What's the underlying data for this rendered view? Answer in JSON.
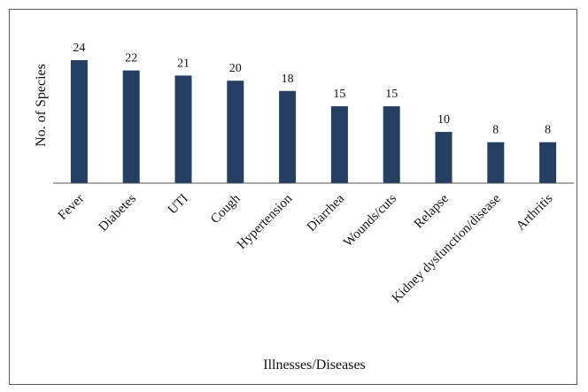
{
  "chart_data": {
    "type": "bar",
    "title": "",
    "xlabel": "Illnesses/Diseases",
    "ylabel": "No. of Species",
    "categories": [
      "Fever",
      "Diabetes",
      "UTI",
      "Cough",
      "Hypertension",
      "Diarrhea",
      "Wounds/cuts",
      "Relapse",
      "Kidney dysfunction/disease",
      "Arthritis"
    ],
    "values": [
      24,
      22,
      21,
      20,
      18,
      15,
      15,
      10,
      8,
      8
    ],
    "ylim": [
      0,
      24
    ],
    "grid": false,
    "legend": "none",
    "data_labels": true,
    "bar_color": "#243f61"
  }
}
